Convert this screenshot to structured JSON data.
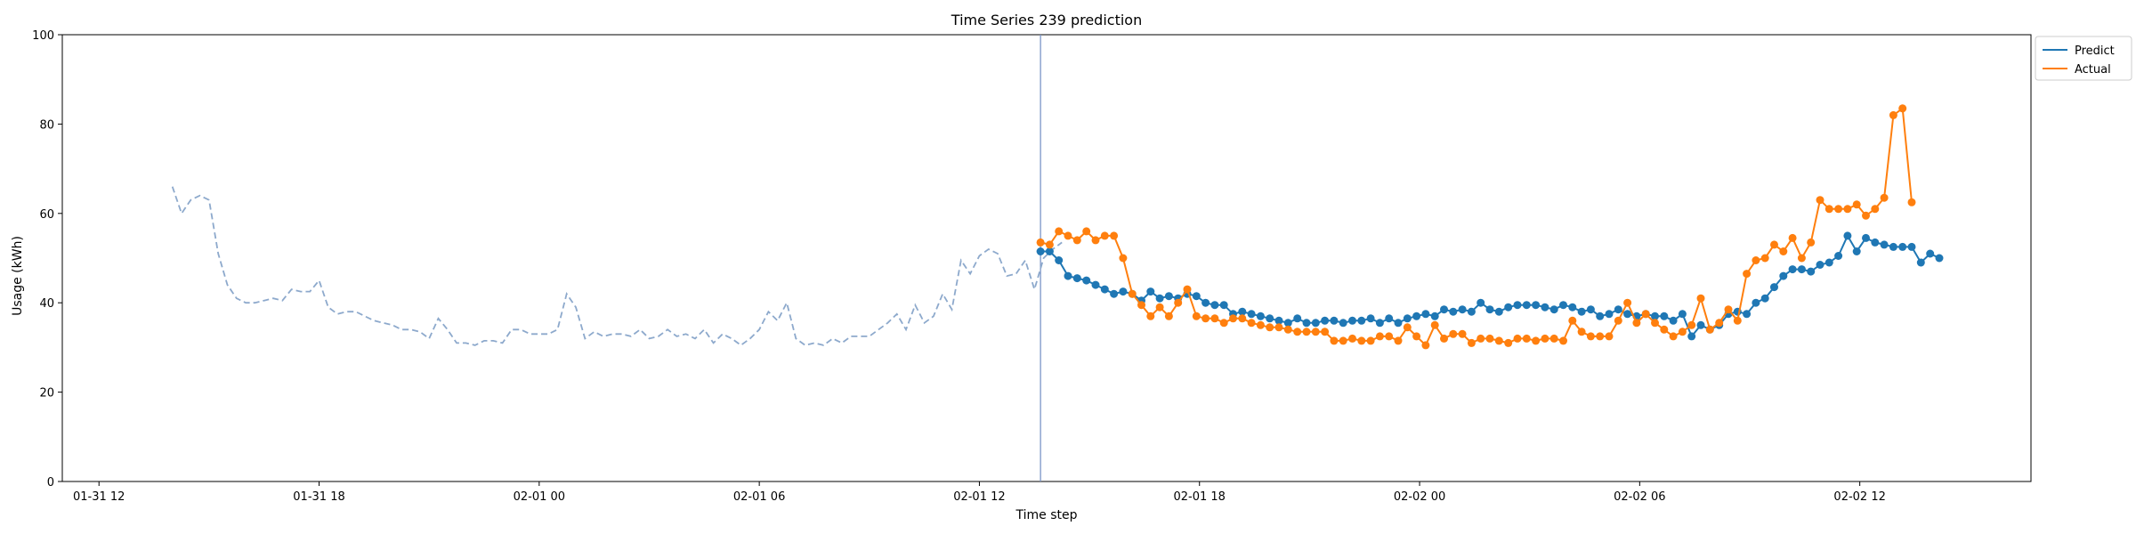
{
  "chart_data": {
    "type": "line",
    "title": "Time Series 239 prediction",
    "xlabel": "Time step",
    "ylabel": "Usage (kWh)",
    "ylim": [
      0,
      100
    ],
    "xlim": [
      "01-31 11:00",
      "02-02 16:40"
    ],
    "grid": false,
    "legend_position": "top-right outside",
    "split_time": "02-01 13:40",
    "x_ticks": [
      {
        "t": "01-31 12:00",
        "label": "01-31 12"
      },
      {
        "t": "01-31 18:00",
        "label": "01-31 18"
      },
      {
        "t": "02-01 00:00",
        "label": "02-01 00"
      },
      {
        "t": "02-01 06:00",
        "label": "02-01 06"
      },
      {
        "t": "02-01 12:00",
        "label": "02-01 12"
      },
      {
        "t": "02-01 18:00",
        "label": "02-01 18"
      },
      {
        "t": "02-02 00:00",
        "label": "02-02 00"
      },
      {
        "t": "02-02 06:00",
        "label": "02-02 06"
      },
      {
        "t": "02-02 12:00",
        "label": "02-02 12"
      }
    ],
    "y_ticks": [
      {
        "v": 0,
        "label": "0"
      },
      {
        "v": 20,
        "label": "20"
      },
      {
        "v": 40,
        "label": "40"
      },
      {
        "v": 60,
        "label": "60"
      },
      {
        "v": 80,
        "label": "80"
      },
      {
        "v": 100,
        "label": "100"
      }
    ],
    "legend": [
      {
        "name": "Predict",
        "color": "#1f77b4"
      },
      {
        "name": "Actual",
        "color": "#ff7f0e"
      }
    ],
    "history_color": "#8da9cc",
    "split_line_color": "#7b96c7",
    "history": {
      "start": "01-31 14:00",
      "step_minutes": 15,
      "values": [
        66.0,
        60.0,
        63.0,
        64.0,
        63.0,
        51.0,
        44.0,
        41.0,
        40.0,
        40.0,
        40.5,
        41.0,
        40.5,
        43.0,
        42.5,
        42.5,
        45.0,
        39.0,
        37.5,
        38.0,
        38.0,
        37.0,
        36.0,
        35.5,
        35.0,
        34.0,
        34.0,
        33.5,
        32.0,
        36.5,
        34.0,
        31.0,
        31.0,
        30.5,
        31.5,
        31.5,
        31.0,
        34.0,
        34.0,
        33.0,
        33.0,
        33.0,
        34.0,
        42.0,
        39.0,
        32.0,
        33.5,
        32.5,
        33.0,
        33.0,
        32.5,
        34.0,
        32.0,
        32.5,
        34.0,
        32.5,
        33.0,
        32.0,
        34.0,
        31.0,
        33.0,
        32.0,
        30.5,
        32.0,
        34.0,
        38.0,
        36.0,
        40.0,
        32.0,
        30.5,
        31.0,
        30.5,
        32.0,
        31.0,
        32.5,
        32.5,
        32.5,
        34.0,
        35.5,
        37.5,
        34.0,
        39.5,
        35.5,
        37.0,
        42.0,
        38.5,
        49.5,
        46.5,
        50.5,
        52.0,
        51.0,
        46.0,
        46.5,
        49.5,
        43.0,
        50.0,
        52.0,
        53.5
      ]
    },
    "series": [
      {
        "name": "Predict",
        "start": "02-01 13:40",
        "step_minutes": 15,
        "values": [
          51.5,
          51.5,
          49.5,
          46.0,
          45.5,
          45.0,
          44.0,
          43.0,
          42.0,
          42.5,
          42.0,
          40.5,
          42.5,
          41.0,
          41.5,
          41.0,
          42.0,
          41.5,
          40.0,
          39.5,
          39.5,
          37.5,
          38.0,
          37.5,
          37.0,
          36.5,
          36.0,
          35.5,
          36.5,
          35.5,
          35.5,
          36.0,
          36.0,
          35.5,
          36.0,
          36.0,
          36.5,
          35.5,
          36.5,
          35.5,
          36.5,
          37.0,
          37.5,
          37.0,
          38.5,
          38.0,
          38.5,
          38.0,
          40.0,
          38.5,
          38.0,
          39.0,
          39.5,
          39.5,
          39.5,
          39.0,
          38.5,
          39.5,
          39.0,
          38.0,
          38.5,
          37.0,
          37.5,
          38.5,
          37.5,
          37.0,
          37.5,
          37.0,
          37.0,
          36.0,
          37.5,
          32.5,
          35.0,
          34.0,
          35.0,
          37.5,
          38.0,
          37.5,
          40.0,
          41.0,
          43.5,
          46.0,
          47.5,
          47.5,
          47.0,
          48.5,
          49.0,
          50.5,
          55.0,
          51.5,
          54.5,
          53.5,
          53.0,
          52.5,
          52.5,
          52.5,
          49.0,
          51.0,
          50.0
        ]
      },
      {
        "name": "Actual",
        "start": "02-01 13:40",
        "step_minutes": 15,
        "values": [
          53.5,
          53.0,
          56.0,
          55.0,
          54.0,
          56.0,
          54.0,
          55.0,
          55.0,
          50.0,
          42.0,
          39.5,
          37.0,
          39.0,
          37.0,
          40.0,
          43.0,
          37.0,
          36.5,
          36.5,
          35.5,
          36.5,
          36.5,
          35.5,
          35.0,
          34.5,
          34.5,
          34.0,
          33.5,
          33.5,
          33.5,
          33.5,
          31.5,
          31.5,
          32.0,
          31.5,
          31.5,
          32.5,
          32.5,
          31.5,
          34.5,
          32.5,
          30.5,
          35.0,
          32.0,
          33.0,
          33.0,
          31.0,
          32.0,
          32.0,
          31.5,
          31.0,
          32.0,
          32.0,
          31.5,
          32.0,
          32.0,
          31.5,
          36.0,
          33.5,
          32.5,
          32.5,
          32.5,
          36.0,
          40.0,
          35.5,
          37.5,
          35.5,
          34.0,
          32.5,
          33.5,
          35.0,
          41.0,
          34.0,
          35.5,
          38.5,
          36.0,
          46.5,
          49.5,
          50.0,
          53.0,
          51.5,
          54.5,
          50.0,
          53.5,
          63.0,
          61.0,
          61.0,
          61.0,
          62.0,
          59.5,
          61.0,
          63.5,
          82.0,
          83.5,
          62.5
        ]
      }
    ]
  }
}
